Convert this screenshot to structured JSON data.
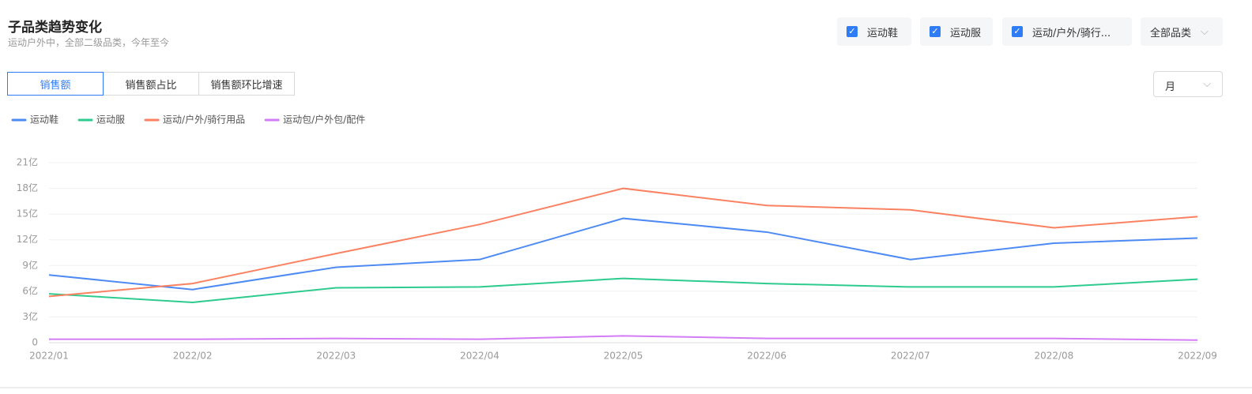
{
  "header": {
    "title": "子品类趋势变化",
    "subtitle": "运动户外中，全部二级品类，今年至今"
  },
  "filters": [
    "运动鞋",
    "运动服",
    "运动/户外/骑行..."
  ],
  "category_select": "全部品类",
  "tabs": [
    "销售额",
    "销售额占比",
    "销售额环比增速"
  ],
  "period_select": "月",
  "chart_data": {
    "type": "line",
    "categories": [
      "2022/01",
      "2022/02",
      "2022/03",
      "2022/04",
      "2022/05",
      "2022/06",
      "2022/07",
      "2022/08",
      "2022/09"
    ],
    "series": [
      {
        "name": "运动鞋",
        "color": "#4e8af3",
        "values": [
          7.9,
          6.2,
          8.8,
          9.7,
          14.5,
          12.9,
          9.7,
          11.6,
          12.2
        ]
      },
      {
        "name": "运动服",
        "color": "#2ecb8e",
        "values": [
          5.7,
          4.7,
          6.4,
          6.5,
          7.5,
          6.9,
          6.5,
          6.5,
          7.4
        ]
      },
      {
        "name": "运动/户外/骑行用品",
        "color": "#fa8262",
        "values": [
          5.4,
          6.9,
          10.4,
          13.8,
          18.0,
          16.0,
          15.5,
          13.4,
          14.7
        ]
      },
      {
        "name": "运动包/户外包/配件",
        "color": "#d37cf5",
        "values": [
          0.4,
          0.4,
          0.5,
          0.4,
          0.8,
          0.5,
          0.5,
          0.5,
          0.3
        ]
      }
    ],
    "ylim": [
      0,
      21
    ],
    "yticks": [
      0,
      {
        "value": 3,
        "label": "3亿"
      },
      {
        "value": 6,
        "label": "6亿"
      },
      {
        "value": 9,
        "label": "9亿"
      },
      {
        "value": 12,
        "label": "12亿"
      },
      {
        "value": 15,
        "label": "15亿"
      },
      {
        "value": 18,
        "label": "18亿"
      },
      {
        "value": 21,
        "label": "21亿"
      }
    ],
    "grid": true
  }
}
